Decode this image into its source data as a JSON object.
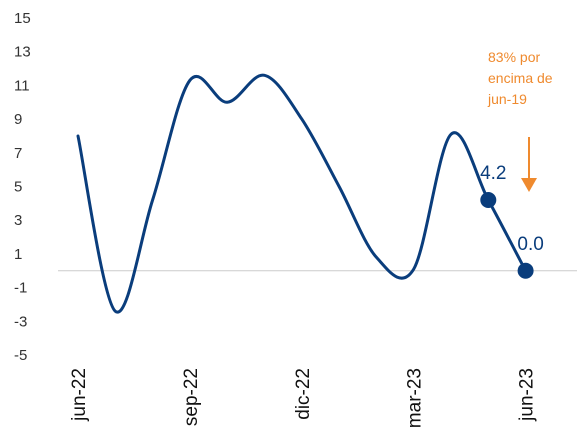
{
  "chart_data": {
    "type": "line",
    "yticks": [
      "15",
      "13",
      "11",
      "9",
      "7",
      "5",
      "3",
      "1",
      "-1",
      "-3",
      "-5"
    ],
    "ylim": [
      -5,
      15
    ],
    "xticks": [
      {
        "label": "jun-22",
        "x": 0
      },
      {
        "label": "sep-22",
        "x": 3
      },
      {
        "label": "dic-22",
        "x": 6
      },
      {
        "label": "mar-23",
        "x": 9
      },
      {
        "label": "jun-23",
        "x": 12
      }
    ],
    "series": [
      {
        "values": [
          [
            0,
            8.0
          ],
          [
            1,
            -2.4
          ],
          [
            2,
            4.2
          ],
          [
            3,
            11.3
          ],
          [
            4,
            10.0
          ],
          [
            5,
            11.6
          ],
          [
            6,
            9.0
          ],
          [
            7,
            5.0
          ],
          [
            8,
            0.8
          ],
          [
            9,
            0.1
          ],
          [
            10,
            8.1
          ],
          [
            11,
            4.2
          ],
          [
            12,
            0.0
          ]
        ],
        "color": "#0a3d7c"
      }
    ],
    "highlighted_points": [
      {
        "x": 11,
        "y": 4.2,
        "label": "4.2"
      },
      {
        "x": 12,
        "y": 0.0,
        "label": "0.0"
      }
    ],
    "annotation": {
      "lines": [
        "83% por",
        "encima de",
        "jun-19"
      ],
      "color": "#ef8a2e"
    },
    "zero_line": true,
    "grid": false
  }
}
